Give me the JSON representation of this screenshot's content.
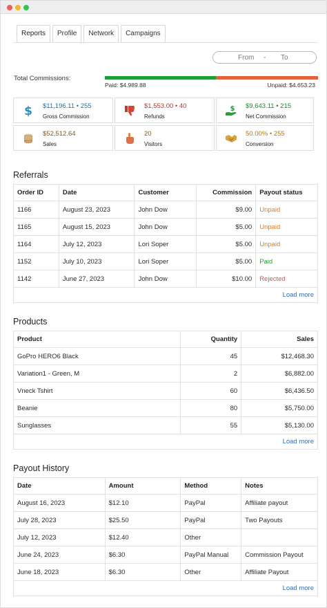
{
  "tabs": [
    "Reports",
    "Profile",
    "Network",
    "Campaigns"
  ],
  "date_range": {
    "from": "From",
    "dash": "-",
    "to": "To"
  },
  "totals": {
    "label": "Total Commissions:",
    "paid": "Paid: $4.989.88",
    "unpaid": "Unpaid: $4.653.23",
    "paid_fraction": 0.52
  },
  "stats": [
    {
      "value": "$11,196.11 • 255",
      "label": "Gross Commission",
      "icon": "dollar-icon",
      "color": "#2a8fbd"
    },
    {
      "value": "$1,553.00 • 40",
      "label": "Refunds",
      "icon": "thumbs-down-icon",
      "color": "#c0392b"
    },
    {
      "value": "$9,643.11 • 215",
      "label": "Net Commission",
      "icon": "hand-money-icon",
      "color": "#2e9a3e"
    },
    {
      "value": "$52,512.64",
      "label": "Sales",
      "icon": "coins-icon",
      "color": "#8a6d3b"
    },
    {
      "value": "20",
      "label": "Visitors",
      "icon": "pointer-hand-icon",
      "color": "#8a6d3b"
    },
    {
      "value": "50.00% • 255",
      "label": "Conversion",
      "icon": "handshake-icon",
      "color": "#8a6d3b"
    }
  ],
  "referrals": {
    "title": "Referrals",
    "headers": [
      "Order ID",
      "Date",
      "Customer",
      "Commission",
      "Payout status"
    ],
    "rows": [
      [
        "1166",
        "August 23, 2023",
        "John Dow",
        "$9.00",
        "Unpaid"
      ],
      [
        "1165",
        "August 15, 2023",
        "John Dow",
        "$5.00",
        "Unpaid"
      ],
      [
        "1164",
        "July 12, 2023",
        "Lori Soper",
        "$5.00",
        "Unpaid"
      ],
      [
        "1152",
        "July 10, 2023",
        "Lori Soper",
        "$5.00",
        "Paid"
      ],
      [
        "1142",
        "June 27, 2023",
        "John Dow",
        "$10.00",
        "Rejected"
      ]
    ],
    "load_more": "Load more"
  },
  "products": {
    "title": "Products",
    "headers": [
      "Product",
      "Quantity",
      "Sales"
    ],
    "rows": [
      [
        "GoPro HERO6 Black",
        "45",
        "$12,468.30"
      ],
      [
        "Variation1 - Green, M",
        "2",
        "$6,882.00"
      ],
      [
        "Vneck Tshirt",
        "60",
        "$6,436.50"
      ],
      [
        "Beanie",
        "80",
        "$5,750.00"
      ],
      [
        "Sunglasses",
        "55",
        "$5,130.00"
      ]
    ],
    "load_more": "Load more"
  },
  "payouts": {
    "title": "Payout History",
    "headers": [
      "Date",
      "Amount",
      "Method",
      "Notes"
    ],
    "rows": [
      [
        "August 16, 2023",
        "$12.10",
        "PayPal",
        "Affiliate payout"
      ],
      [
        "July 28, 2023",
        "$25.50",
        "PayPal",
        "Two Payouts"
      ],
      [
        "July 12, 2023",
        "$12.40",
        "Other",
        ""
      ],
      [
        "June 24, 2023",
        "$6.30",
        "PayPal Manual",
        "Commission Payout"
      ],
      [
        "June 18, 2023",
        "$6.30",
        "Other",
        "Affiliate Payout"
      ]
    ],
    "load_more": "Load more"
  }
}
